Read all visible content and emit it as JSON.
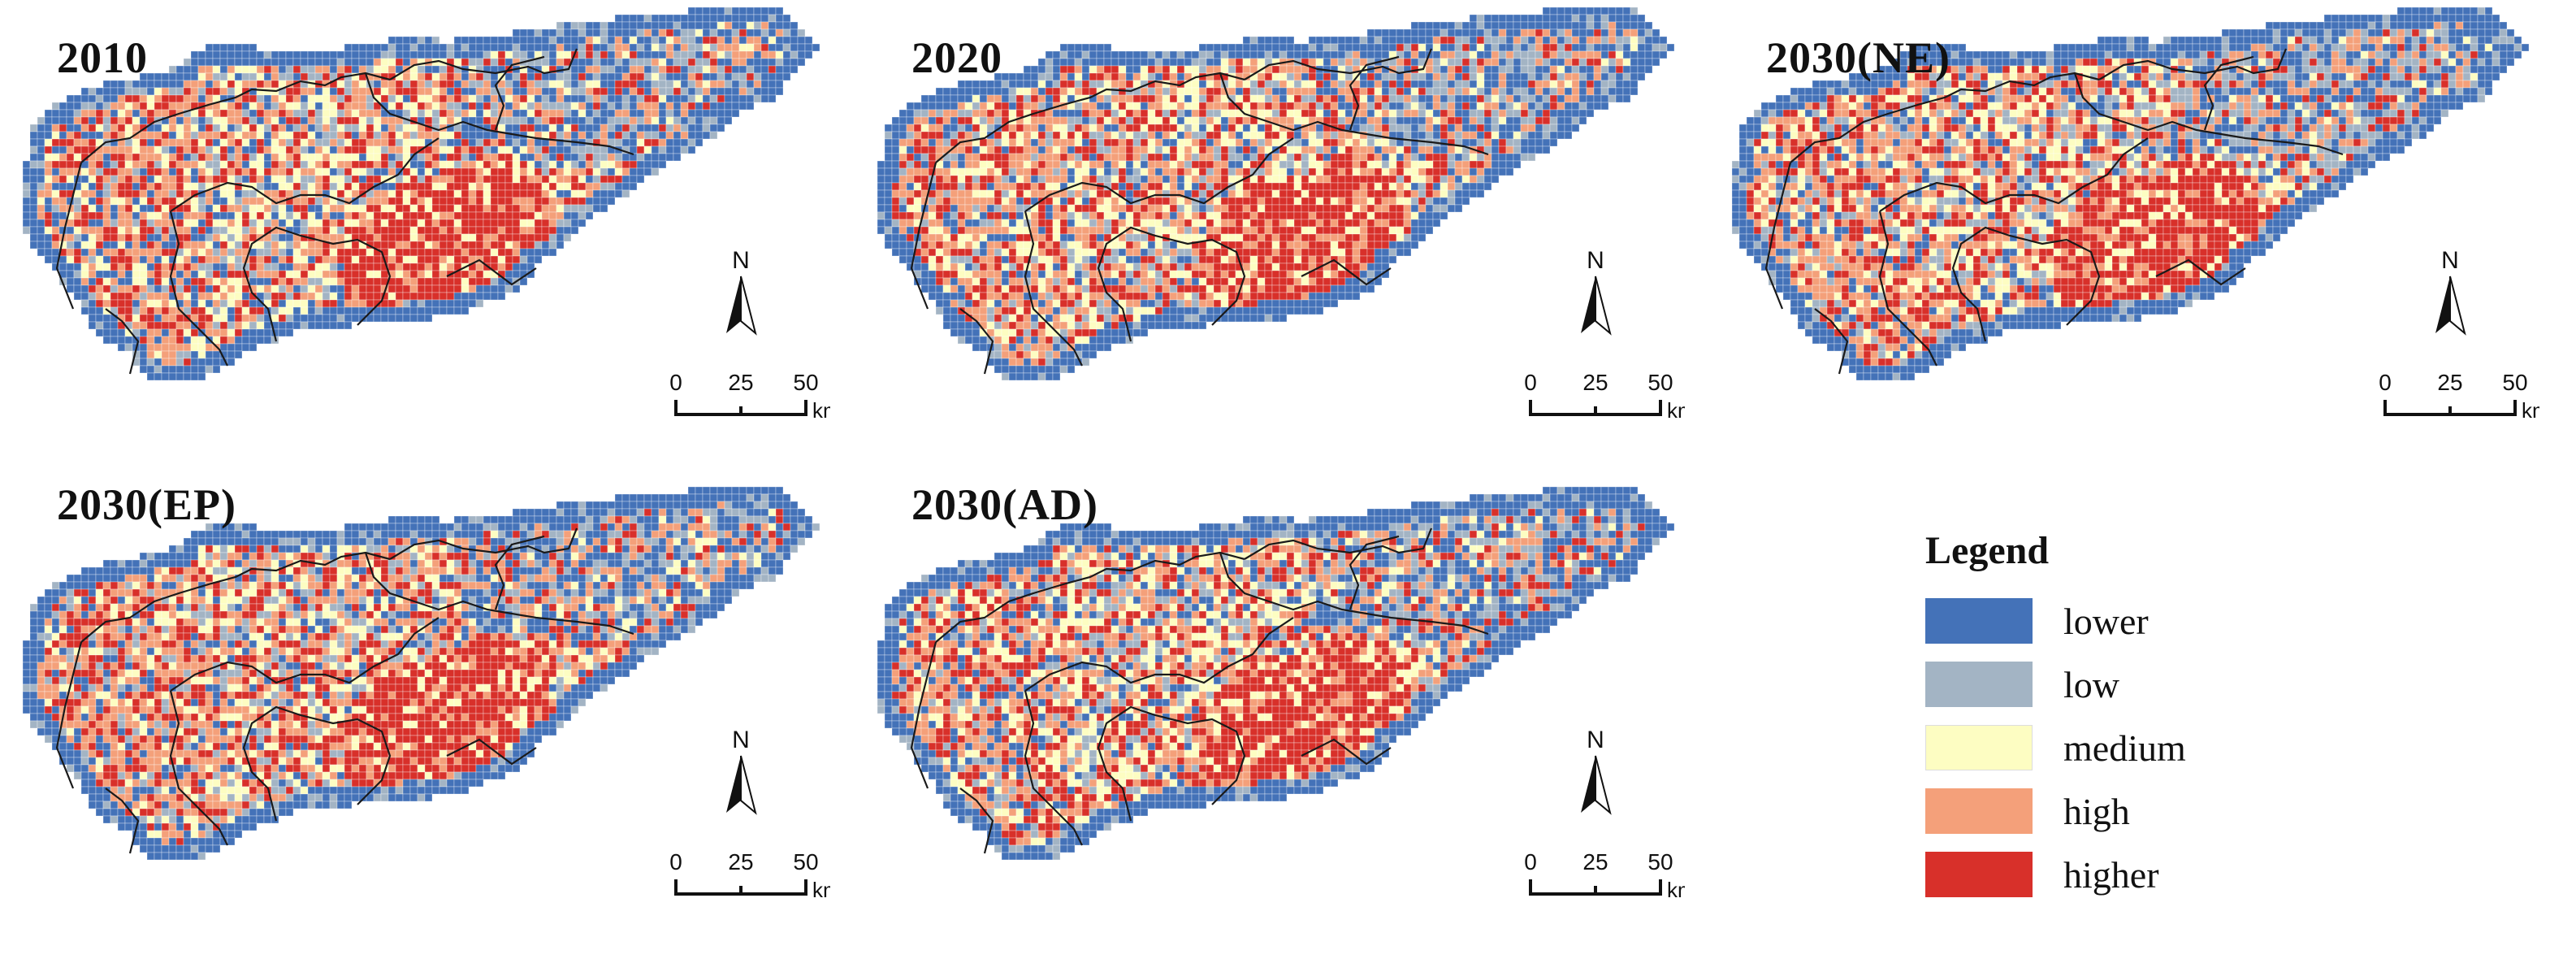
{
  "panels": [
    {
      "title": "2010",
      "seed": 11
    },
    {
      "title": "2020",
      "seed": 23
    },
    {
      "title": "2030(NE)",
      "seed": 37
    },
    {
      "title": "2030(EP)",
      "seed": 53
    },
    {
      "title": "2030(AD)",
      "seed": 71
    }
  ],
  "north_label": "N",
  "scale": {
    "ticks": [
      "0",
      "25",
      "50"
    ],
    "unit": "km"
  },
  "legend": {
    "title": "Legend",
    "classes": [
      {
        "label": "lower",
        "color": "#4472b8"
      },
      {
        "label": "low",
        "color": "#a3b4c4"
      },
      {
        "label": "medium",
        "color": "#fdfdc2"
      },
      {
        "label": "high",
        "color": "#f4a07a"
      },
      {
        "label": "higher",
        "color": "#d8302a"
      }
    ]
  }
}
